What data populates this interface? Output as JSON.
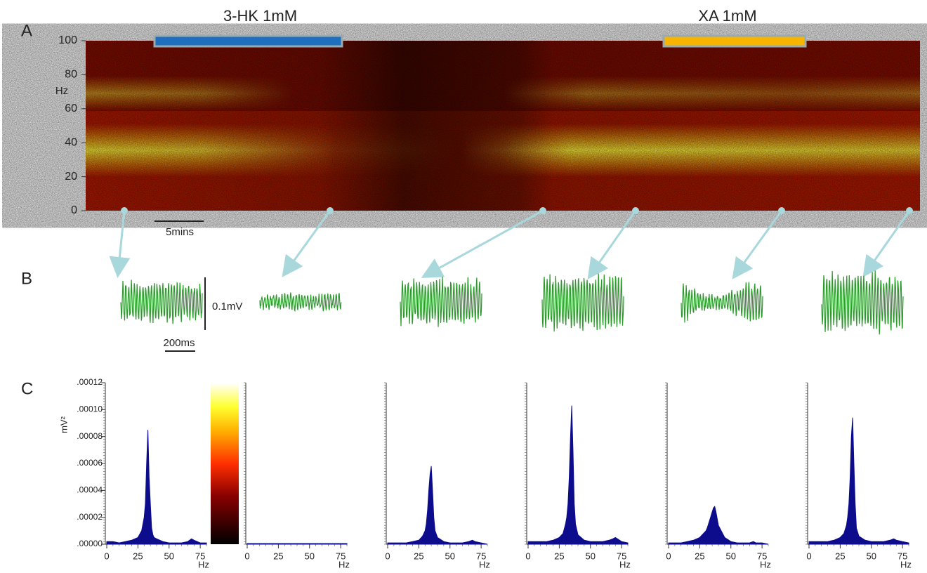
{
  "panel_labels": [
    "A",
    "B",
    "C"
  ],
  "spectrogram": {
    "treatments": [
      {
        "label": "3-HK 1mM",
        "color": "#1f6fbf"
      },
      {
        "label": "XA 1mM",
        "color": "#f7b500"
      }
    ],
    "y_label": "Hz",
    "ylim": [
      0,
      100
    ],
    "yticks": [
      0,
      20,
      40,
      60,
      80,
      100
    ],
    "scale_bar": "5mins"
  },
  "traces": {
    "scale_amplitude": "0.1mV",
    "scale_time": "200ms"
  },
  "chart_data": [
    {
      "type": "area",
      "color": "#0c0c8c",
      "x_label": "Hz",
      "y_label": "mV²",
      "xlim": [
        0,
        80
      ],
      "ylim": [
        0,
        0.00012
      ],
      "xticks": [
        0,
        25,
        50,
        75
      ],
      "yticks": [
        {
          "value": 0,
          "label": ".00000"
        },
        {
          "value": 2e-05,
          "label": ".00002"
        },
        {
          "value": 4e-05,
          "label": ".00004"
        },
        {
          "value": 6e-05,
          "label": ".00006"
        },
        {
          "value": 8e-05,
          "label": ".00008"
        },
        {
          "value": 0.0001,
          "label": ".00010"
        },
        {
          "value": 0.00012,
          "label": ".00012"
        }
      ],
      "x": [
        0,
        5,
        10,
        15,
        20,
        25,
        28,
        30,
        31,
        32,
        33,
        34,
        35,
        36,
        37,
        38,
        40,
        45,
        50,
        55,
        60,
        65,
        68,
        70,
        75,
        80
      ],
      "values": [
        2e-06,
        2e-06,
        1e-06,
        2e-06,
        3e-06,
        5e-06,
        1e-05,
        2e-05,
        3e-05,
        6e-05,
        8.5e-05,
        5e-05,
        3e-05,
        1.2e-05,
        7e-06,
        5e-06,
        4e-06,
        2e-06,
        1e-06,
        1e-06,
        1e-06,
        2e-06,
        4e-06,
        3e-06,
        1e-06,
        1e-06
      ]
    },
    {
      "type": "area",
      "color": "#0c0c8c",
      "x_label": "Hz",
      "xlim": [
        0,
        80
      ],
      "ylim": [
        0,
        0.00012
      ],
      "xticks": [
        0,
        25,
        50,
        75
      ],
      "x": [
        0,
        5,
        10,
        15,
        20,
        25,
        28,
        30,
        31,
        32,
        33,
        34,
        35,
        36,
        37,
        38,
        40,
        45,
        50,
        55,
        60,
        65,
        68,
        70,
        75,
        80
      ],
      "values": [
        5e-07,
        5e-07,
        5e-07,
        5e-07,
        5e-07,
        5e-07,
        5e-07,
        5e-07,
        5e-07,
        5e-07,
        5e-07,
        5e-07,
        5e-07,
        5e-07,
        5e-07,
        5e-07,
        5e-07,
        5e-07,
        5e-07,
        5e-07,
        5e-07,
        5e-07,
        5e-07,
        5e-07,
        5e-07,
        5e-07
      ]
    },
    {
      "type": "area",
      "color": "#0c0c8c",
      "x_label": "Hz",
      "xlim": [
        0,
        80
      ],
      "ylim": [
        0,
        0.00012
      ],
      "xticks": [
        0,
        25,
        50,
        75
      ],
      "x": [
        0,
        5,
        10,
        15,
        20,
        25,
        28,
        30,
        31,
        32,
        33,
        34,
        35,
        36,
        37,
        38,
        40,
        45,
        50,
        55,
        60,
        65,
        68,
        70,
        75,
        80
      ],
      "values": [
        1e-06,
        1e-06,
        1e-06,
        1e-06,
        2e-06,
        3e-06,
        6e-06,
        1e-05,
        1.5e-05,
        2.5e-05,
        4e-05,
        5.2e-05,
        5.8e-05,
        4e-05,
        2e-05,
        1e-05,
        5e-06,
        2e-06,
        1e-06,
        1e-06,
        1e-06,
        2e-06,
        3e-06,
        2e-06,
        1e-06,
        0
      ]
    },
    {
      "type": "area",
      "color": "#0c0c8c",
      "x_label": "Hz",
      "xlim": [
        0,
        80
      ],
      "ylim": [
        0,
        0.00012
      ],
      "xticks": [
        0,
        25,
        50,
        75
      ],
      "x": [
        0,
        5,
        10,
        15,
        20,
        25,
        28,
        30,
        31,
        32,
        33,
        34,
        35,
        36,
        37,
        38,
        40,
        45,
        50,
        55,
        60,
        65,
        68,
        70,
        75,
        80
      ],
      "values": [
        2e-06,
        2e-06,
        2e-06,
        2e-06,
        3e-06,
        5e-06,
        8e-06,
        1.5e-05,
        2e-05,
        3e-05,
        5e-05,
        8e-05,
        0.000103,
        7e-05,
        3e-05,
        1.5e-05,
        7e-06,
        3e-06,
        2e-06,
        2e-06,
        2e-06,
        3e-06,
        4e-06,
        5e-06,
        2e-06,
        1e-06
      ]
    },
    {
      "type": "area",
      "color": "#0c0c8c",
      "x_label": "Hz",
      "xlim": [
        0,
        80
      ],
      "ylim": [
        0,
        0.00012
      ],
      "xticks": [
        0,
        25,
        50,
        75
      ],
      "x": [
        0,
        5,
        10,
        15,
        20,
        25,
        28,
        30,
        31,
        32,
        33,
        34,
        35,
        36,
        37,
        38,
        40,
        45,
        50,
        55,
        60,
        65,
        68,
        70,
        75,
        80
      ],
      "values": [
        1e-06,
        1e-06,
        1e-06,
        2e-06,
        3e-06,
        5e-06,
        8e-06,
        1e-05,
        1.2e-05,
        1.5e-05,
        1.8e-05,
        2.1e-05,
        2.4e-05,
        2.7e-05,
        2.8e-05,
        2.4e-05,
        1.4e-05,
        5e-06,
        2e-06,
        1e-06,
        1e-06,
        1e-06,
        2e-06,
        1e-06,
        1e-06,
        0
      ]
    },
    {
      "type": "area",
      "color": "#0c0c8c",
      "x_label": "Hz",
      "xlim": [
        0,
        80
      ],
      "ylim": [
        0,
        0.00012
      ],
      "xticks": [
        0,
        25,
        50,
        75
      ],
      "x": [
        0,
        5,
        10,
        15,
        20,
        25,
        28,
        30,
        31,
        32,
        33,
        34,
        35,
        36,
        37,
        38,
        40,
        45,
        50,
        55,
        60,
        65,
        68,
        70,
        75,
        80
      ],
      "values": [
        2e-06,
        2e-06,
        2e-06,
        2e-06,
        3e-06,
        5e-06,
        8e-06,
        1.4e-05,
        2e-05,
        3e-05,
        5e-05,
        8e-05,
        9.4e-05,
        6e-05,
        3e-05,
        1.2e-05,
        6e-06,
        3e-06,
        2e-06,
        2e-06,
        2e-06,
        3e-06,
        4e-06,
        3e-06,
        2e-06,
        1e-06
      ]
    }
  ]
}
